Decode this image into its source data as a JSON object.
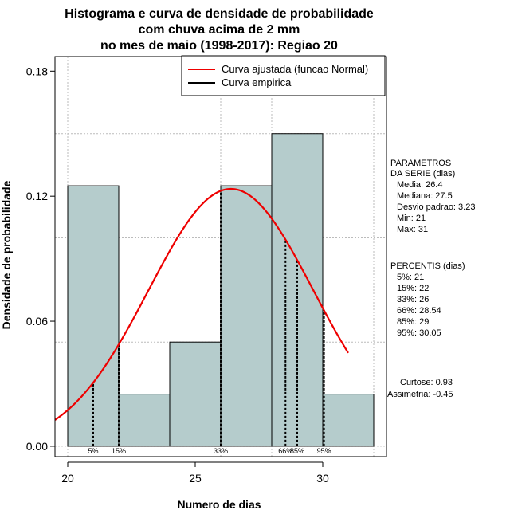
{
  "chart_data": {
    "type": "histogram",
    "title_lines": [
      "Histograma e curva de densidade de probabilidade",
      "com chuva acima de 2 mm",
      "no mes de maio (1998-2017): Regiao 20"
    ],
    "xlabel": "Numero de dias",
    "ylabel": "Densidade de probabilidade",
    "xlim": [
      19.5,
      32.5
    ],
    "ylim": [
      -0.005,
      0.187
    ],
    "xticks": [
      20,
      25,
      30
    ],
    "yticks": [
      0.0,
      0.06,
      0.12,
      0.18
    ],
    "ytick_labels": [
      "0.00",
      "0.06",
      "0.12",
      "0.18"
    ],
    "grid_x": [
      20,
      26,
      28,
      32
    ],
    "grid_y": [
      0.0,
      0.05,
      0.1,
      0.15
    ],
    "bins": [
      {
        "start": 20,
        "end": 22,
        "density": 0.125
      },
      {
        "start": 22,
        "end": 24,
        "density": 0.025
      },
      {
        "start": 24,
        "end": 26,
        "density": 0.05
      },
      {
        "start": 26,
        "end": 28,
        "density": 0.125
      },
      {
        "start": 28,
        "end": 30,
        "density": 0.15
      },
      {
        "start": 30,
        "end": 32,
        "density": 0.025
      }
    ],
    "fitted_curve": {
      "mean": 26.4,
      "sd": 3.23,
      "x_range": [
        19.5,
        31.0
      ],
      "color": "#ee0000"
    },
    "percentile_lines": [
      {
        "label": "5%",
        "x": 21
      },
      {
        "label": "15%",
        "x": 22
      },
      {
        "label": "33%",
        "x": 26
      },
      {
        "label": "66%",
        "x": 28.54
      },
      {
        "label": "85%",
        "x": 29
      },
      {
        "label": "95%",
        "x": 30.05
      }
    ],
    "legend": [
      {
        "label": "Curva ajustada (funcao Normal)",
        "color": "#ee0000"
      },
      {
        "label": "Curva empirica",
        "color": "#000000"
      }
    ],
    "bar_color": "#b5cccc"
  },
  "side_panel": {
    "params_title": [
      "PARAMETROS",
      "DA SERIE (dias)"
    ],
    "params": [
      "Media: 26.4",
      "Mediana: 27.5",
      "Desvio padrao: 3.23",
      "Min: 21",
      "Max: 31"
    ],
    "pct_title": "PERCENTIS (dias)",
    "pct": [
      "5%: 21",
      "15%: 22",
      "33%: 26",
      "66%: 28.54",
      "85%: 29",
      "95%: 30.05"
    ],
    "curtose": "Curtose: 0.93",
    "assimetria": "Assimetria: -0.45"
  }
}
